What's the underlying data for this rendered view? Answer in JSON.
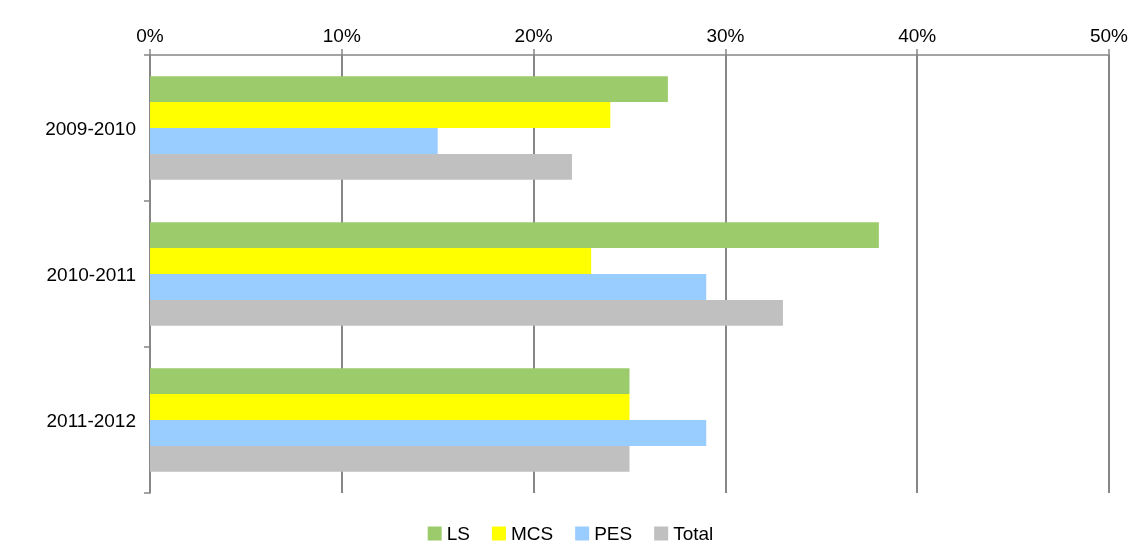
{
  "chart_data": {
    "type": "bar",
    "orientation": "horizontal",
    "categories": [
      "2009-2010",
      "2010-2011",
      "2011-2012"
    ],
    "series": [
      {
        "name": "LS",
        "color": "#9bcb6a",
        "values": [
          27,
          38,
          25
        ]
      },
      {
        "name": "MCS",
        "color": "#ffff00",
        "values": [
          24,
          23,
          25
        ]
      },
      {
        "name": "PES",
        "color": "#99ccff",
        "values": [
          15,
          29,
          29
        ]
      },
      {
        "name": "Total",
        "color": "#c0c0c0",
        "values": [
          22,
          33,
          25
        ]
      }
    ],
    "xlim": [
      0,
      50
    ],
    "xticks": [
      {
        "value": 0,
        "label": "0%"
      },
      {
        "value": 10,
        "label": "10%"
      },
      {
        "value": 20,
        "label": "20%"
      },
      {
        "value": 30,
        "label": "30%"
      },
      {
        "value": 40,
        "label": "40%"
      },
      {
        "value": 50,
        "label": "50%"
      }
    ],
    "grid": "x",
    "legend": "bottom"
  }
}
